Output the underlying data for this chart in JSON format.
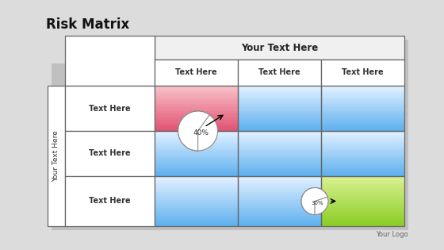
{
  "title": "Risk Matrix",
  "header_label": "Your Text Here",
  "row_label": "Your Text Here",
  "col_headers": [
    "Text Here",
    "Text Here",
    "Text Here"
  ],
  "row_headers": [
    "Text Here",
    "Text Here",
    "Text Here"
  ],
  "logo_text": "Your Logo",
  "bg_color": "#dcdcdc",
  "cell_colors": [
    [
      "#f08090",
      "#aaccee",
      "#aaccee"
    ],
    [
      "#aaccee",
      "#aaccee",
      "#aaccee"
    ],
    [
      "#aaccee",
      "#aaccee",
      "#99cc44"
    ]
  ],
  "pie1_pct": 40,
  "pie1_label": "40%",
  "pie2_pct": 30,
  "pie2_label": "30%"
}
